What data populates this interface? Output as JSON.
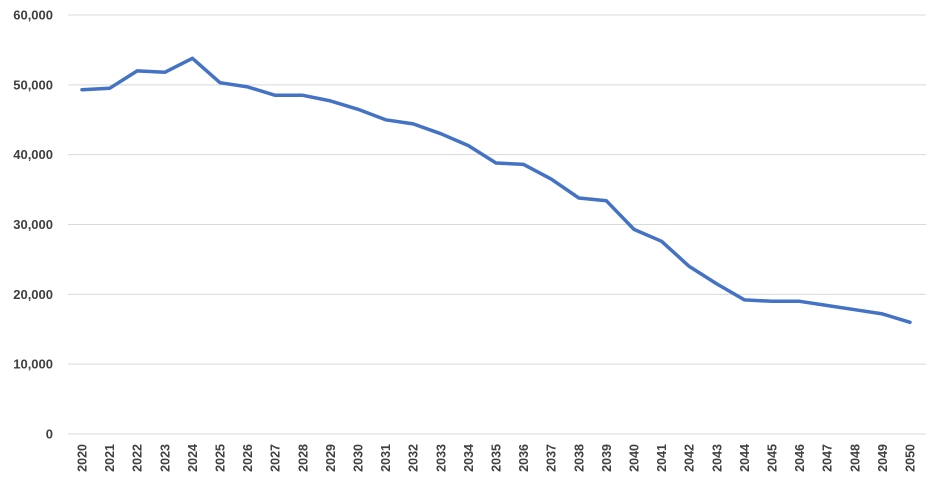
{
  "chart_data": {
    "type": "line",
    "title": "",
    "xlabel": "",
    "ylabel": "",
    "ylim": [
      0,
      60000
    ],
    "yticks": [
      0,
      10000,
      20000,
      30000,
      40000,
      50000,
      60000
    ],
    "ytick_labels": [
      "0",
      "10,000",
      "20,000",
      "30,000",
      "40,000",
      "50,000",
      "60,000"
    ],
    "grid": true,
    "legend": "none",
    "categories": [
      "2020",
      "2021",
      "2022",
      "2023",
      "2024",
      "2025",
      "2026",
      "2027",
      "2028",
      "2029",
      "2030",
      "2031",
      "2032",
      "2033",
      "2034",
      "2035",
      "2036",
      "2037",
      "2038",
      "2039",
      "2040",
      "2041",
      "2042",
      "2043",
      "2044",
      "2045",
      "2046",
      "2047",
      "2048",
      "2049",
      "2050"
    ],
    "series": [
      {
        "color": "#4472c4",
        "values": [
          49300,
          49500,
          52000,
          51800,
          53800,
          50300,
          49700,
          48500,
          48500,
          47700,
          46500,
          45000,
          44400,
          43000,
          41300,
          38800,
          38600,
          36500,
          33800,
          33400,
          29300,
          27600,
          24000,
          21500,
          19200,
          19000,
          19000,
          18400,
          17800,
          17200,
          16000
        ]
      }
    ]
  }
}
